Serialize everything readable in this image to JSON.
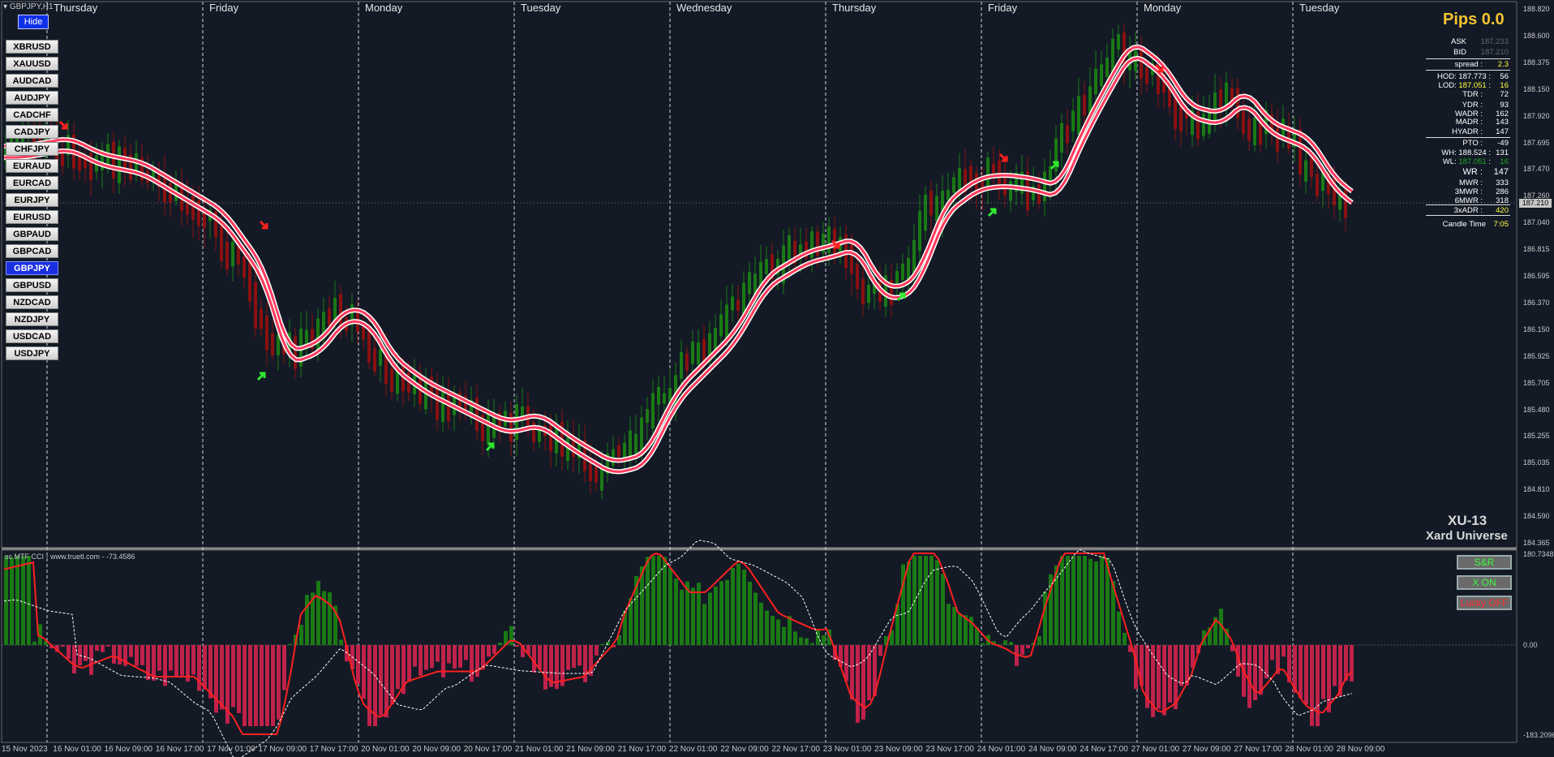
{
  "window": {
    "symbol_title": "GBPJPY,H1",
    "indicator_title": "sc MTF CCI - www.truetl.com - -73.4586"
  },
  "hide_button": "Hide",
  "symbols": [
    "XBRUSD",
    "XAUUSD",
    "AUDCAD",
    "AUDJPY",
    "CADCHF",
    "CADJPY",
    "CHFJPY",
    "EURAUD",
    "EURCAD",
    "EURJPY",
    "EURUSD",
    "GBPAUD",
    "GBPCAD",
    "GBPJPY",
    "GBPUSD",
    "NZDCAD",
    "NZDJPY",
    "USDCAD",
    "USDJPY"
  ],
  "active_symbol": "GBPJPY",
  "days": [
    "Thursday",
    "Friday",
    "Monday",
    "Tuesday",
    "Wednesday",
    "Thursday",
    "Friday",
    "Monday",
    "Tuesday"
  ],
  "price_axis": [
    "188.820",
    "188.600",
    "188.375",
    "188.150",
    "187.920",
    "187.695",
    "187.470",
    "187.260",
    "187.040",
    "186.815",
    "186.595",
    "186.370",
    "186.150",
    "185.925",
    "185.705",
    "185.480",
    "185.255",
    "185.035",
    "184.810",
    "184.590",
    "184.365"
  ],
  "current_price": "187.210",
  "indicator_axis": {
    "top": "180.7348",
    "zero": "0.00",
    "bottom": "-183.2096"
  },
  "time_axis": [
    "15 Nov 2023",
    "16 Nov 01:00",
    "16 Nov 09:00",
    "16 Nov 17:00",
    "17 Nov 01:00",
    "17 Nov 09:00",
    "17 Nov 17:00",
    "20 Nov 01:00",
    "20 Nov 09:00",
    "20 Nov 17:00",
    "21 Nov 01:00",
    "21 Nov 09:00",
    "21 Nov 17:00",
    "22 Nov 01:00",
    "22 Nov 09:00",
    "22 Nov 17:00",
    "23 Nov 01:00",
    "23 Nov 09:00",
    "23 Nov 17:00",
    "24 Nov 01:00",
    "24 Nov 09:00",
    "24 Nov 17:00",
    "27 Nov 01:00",
    "27 Nov 09:00",
    "27 Nov 17:00",
    "28 Nov 01:00",
    "28 Nov 09:00"
  ],
  "info": {
    "pips": "Pips 0.0",
    "ask_label": "ASK",
    "ask": "187.233",
    "bid_label": "BID",
    "bid": "187.210",
    "spread_label": "spread :",
    "spread": "2.3",
    "hod_label": "HOD: 187.773 :",
    "hod": "56",
    "lod_label": "LOD:",
    "lod_price": "187.051",
    "lod": "16",
    "tdr_label": "TDR :",
    "tdr": "72",
    "ydr_label": "YDR :",
    "ydr": "93",
    "wadr_label": "WADR :",
    "wadr": "162",
    "madr_label": "MADR :",
    "madr": "143",
    "hyadr_label": "HYADR :",
    "hyadr": "147",
    "pto_label": "PTO :",
    "pto": "-49",
    "wh_label": "WH: 188.524 :",
    "wh": "131",
    "wl_label": "WL:",
    "wl_price": "187.051",
    "wl": "16",
    "wr_label": "WR :",
    "wr": "147",
    "mwr_label": "MWR :",
    "mwr": "333",
    "mwr3_label": "3MWR :",
    "mwr3": "286",
    "mwr6_label": "6MWR :",
    "mwr6": "318",
    "xadr_label": "3xADR :",
    "xadr": "420",
    "candle_label": "Candle Time",
    "candle": "7:05"
  },
  "panel_buttons": {
    "sr": "S&R",
    "xon": "X ON",
    "lucky": "Lucky OFF"
  },
  "brand": {
    "line1": "XU-13",
    "line2": "Xard Universe"
  },
  "colors": {
    "bg": "#131a26",
    "bull": "#1a7a14",
    "bear": "#8b1010",
    "ma_bull": "#3bbd3b",
    "ma_bear": "#ff3a5c",
    "arrow_up": "#2eea2e",
    "arrow_down": "#ff2020",
    "accent": "#f4c430"
  }
}
